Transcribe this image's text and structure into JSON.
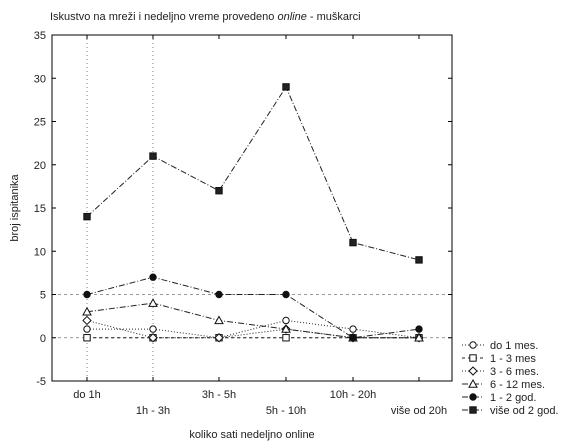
{
  "chart_data": {
    "type": "line",
    "title_parts": [
      {
        "text": "Iskustvo na mreži i nedeljno vreme provedeno ",
        "italic": false
      },
      {
        "text": "online",
        "italic": true
      },
      {
        "text": " - muškarci",
        "italic": false
      }
    ],
    "xlabel": "koliko sati nedeljno online",
    "ylabel": "broj ispitanika",
    "ylim": [
      -5,
      35
    ],
    "yticks": [
      -5,
      0,
      5,
      10,
      15,
      20,
      25,
      30,
      35
    ],
    "categories": [
      "do 1h",
      "1h - 3h",
      "3h - 5h",
      "5h - 10h",
      "10h - 20h",
      "više od 20h"
    ],
    "category_label_row": [
      0,
      1,
      0,
      1,
      0,
      1
    ],
    "grid": "dotted vertical lines at first two categories; dashed horizontal lines at 0 and 5",
    "legend_position": "bottom-right, outside plot",
    "series": [
      {
        "name": "do 1 mes.",
        "values": [
          1,
          1,
          0,
          2,
          1,
          0
        ],
        "marker": "circle-open",
        "dash": "1,2"
      },
      {
        "name": "1 - 3 mes",
        "values": [
          0,
          0,
          0,
          0,
          0,
          0
        ],
        "marker": "square-open",
        "dash": "3,3"
      },
      {
        "name": "3 - 6 mes.",
        "values": [
          2,
          0,
          0,
          1,
          0,
          0
        ],
        "marker": "diamond-open",
        "dash": "1,2"
      },
      {
        "name": "6 - 12 mes.",
        "values": [
          3,
          4,
          2,
          1,
          0,
          0
        ],
        "marker": "triangle-open",
        "dash": "6,2,1,2"
      },
      {
        "name": "1 - 2 god.",
        "values": [
          5,
          7,
          5,
          5,
          0,
          1
        ],
        "marker": "circle-filled",
        "dash": "6,2,1,2"
      },
      {
        "name": "više od 2 god.",
        "values": [
          14,
          21,
          17,
          29,
          11,
          9
        ],
        "marker": "square-filled",
        "dash": "6,2,1,2"
      }
    ]
  }
}
